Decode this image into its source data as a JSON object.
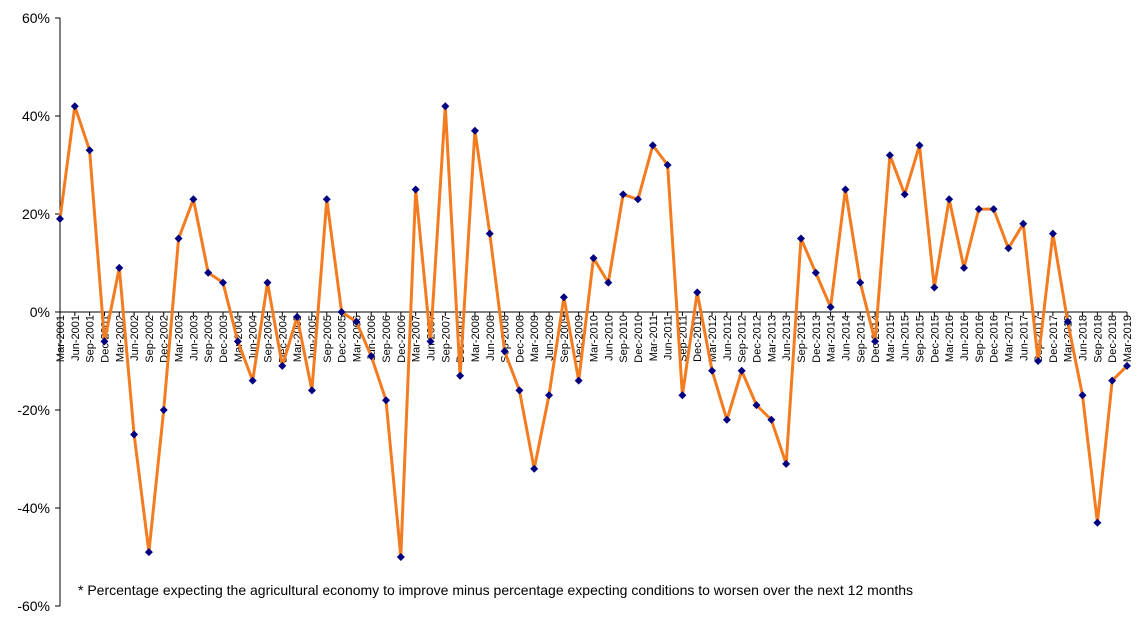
{
  "chart_data": {
    "type": "line",
    "title": "",
    "xlabel": "",
    "ylabel": "",
    "ylim": [
      -60,
      60
    ],
    "ytick_step": 20,
    "ytick_labels": [
      "60%",
      "40%",
      "20%",
      "0%",
      "-20%",
      "-40%",
      "-60%"
    ],
    "grid": false,
    "legend": "none",
    "line_color": "#F47C20",
    "marker_color": "#000080",
    "x": [
      "Mar-2001",
      "Jun-2001",
      "Sep-2001",
      "Dec-2001",
      "Mar-2002",
      "Jun-2002",
      "Sep-2002",
      "Dec-2002",
      "Mar-2003",
      "Jun-2003",
      "Sep-2003",
      "Dec-2003",
      "Mar-2004",
      "Jun-2004",
      "Sep-2004",
      "Dec-2004",
      "Mar-2005",
      "Jun-2005",
      "Sep-2005",
      "Dec-2005",
      "Mar-2006",
      "Jun-2006",
      "Sep-2006",
      "Dec-2006",
      "Mar-2007",
      "Jun-2007",
      "Sep-2007",
      "Dec-2007",
      "Mar-2008",
      "Jun-2008",
      "Sep-2008",
      "Dec-2008",
      "Mar-2009",
      "Jun-2009",
      "Sep-2009",
      "Dec-2009",
      "Mar-2010",
      "Jun-2010",
      "Sep-2010",
      "Dec-2010",
      "Mar-2011",
      "Jun-2011",
      "Sep-2011",
      "Dec-2011",
      "Mar-2012",
      "Jun-2012",
      "Sep-2012",
      "Dec-2012",
      "Mar-2013",
      "Jun-2013",
      "Sep-2013",
      "Dec-2013",
      "Mar-2014",
      "Jun-2014",
      "Sep-2014",
      "Dec-2014",
      "Mar-2015",
      "Jun-2015",
      "Sep-2015",
      "Dec-2015",
      "Mar-2016",
      "Jun-2016",
      "Sep-2016",
      "Dec-2016",
      "Mar-2017",
      "Jun-2017",
      "Sep-2017",
      "Dec-2017",
      "Mar-2018",
      "Jun-2018",
      "Sep-2018",
      "Dec-2018",
      "Mar-2019"
    ],
    "visible_x_labels": [
      "Mar-2001",
      "Jun-2001",
      "Sep-2001",
      "Dec-2001",
      "Mar-2002",
      "Jun-2002",
      "Sep-2002",
      "Dec-2002",
      "Mar-2003",
      "Jun-2003",
      "Sep-2003",
      "Dec-2003",
      "Mar-2004",
      "Jun-2004",
      "Sep-2004",
      "Dec-2004",
      "Mar-2005",
      "Jun-2005",
      "Sep-2005",
      "Dec-2005",
      "Mar-2006",
      "Jun-2006",
      "Sep-2006",
      "Dec-2006",
      "Mar-2007",
      "Jun-2007",
      "Sep-2007",
      "Dec-2007",
      "Mar-2008",
      "Jun-2008",
      "Sep-2008",
      "Dec-2008",
      "Mar-2009",
      "Jun-2009",
      "Sep-2009",
      "Dec-2009",
      "Mar-2010",
      "Jun-2010",
      "Sep-2010",
      "Dec-2010",
      "Mar-2011",
      "Jun-2011",
      "Sep-2011",
      "Dec-2011",
      "Mar-2012",
      "Jun-2012",
      "Sep-2012",
      "Dec-2012",
      "Mar-2013",
      "Jun-2013",
      "Sep-2013",
      "Dec-2013",
      "Mar-2014",
      "Jun-2014",
      "Sep-2014",
      "Dec-2014",
      "Mar-2015",
      "Jun-2015",
      "Sep-2015",
      "Dec-2015",
      "Mar-2016",
      "Jun-2016",
      "Sep-2016",
      "Dec-2016",
      "Mar-2017",
      "Jun-2017",
      "Sep-2017",
      "Dec-2017",
      "Mar-2018",
      "Jun-2018",
      "Sep-2018",
      "Dec-2018",
      "Mar-2019"
    ],
    "series": [
      {
        "values": [
          19,
          42,
          33,
          -6,
          9,
          -25,
          -49,
          -20,
          15,
          23,
          8,
          6,
          -6,
          -14,
          6,
          -11,
          -1,
          -16,
          23,
          0,
          -2,
          -9,
          -18,
          -50,
          25,
          -6,
          42,
          -13,
          37,
          16,
          -8,
          -16,
          -32,
          -17,
          3,
          -14,
          11,
          6,
          24,
          23,
          34,
          30,
          -17,
          4,
          -12,
          -22,
          -12,
          -19,
          -22,
          -31,
          15,
          8,
          1,
          25,
          6,
          -6,
          32,
          24,
          34,
          5,
          23,
          9,
          21,
          21,
          13,
          18,
          -10,
          16,
          -2,
          -17,
          -43,
          -14,
          -11
        ]
      }
    ],
    "footnote": "* Percentage expecting the agricultural economy to improve minus percentage expecting conditions to worsen over the next 12 months"
  }
}
